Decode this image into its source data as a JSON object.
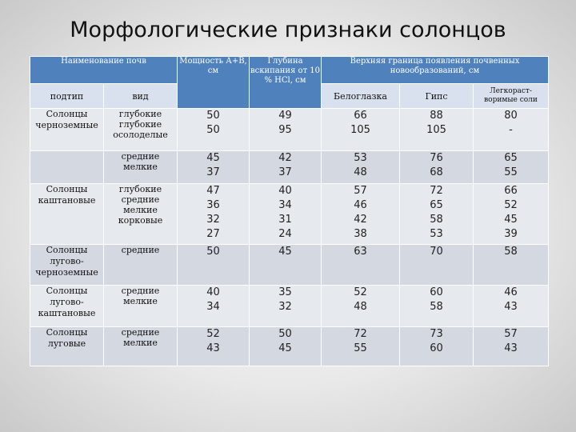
{
  "title": "Морфологические признаки солонцов",
  "header": {
    "naming": "Наименование почв",
    "subtype": "подтип",
    "kind": "вид",
    "thickness": "Мощность А+В, см",
    "boiling": "Глубина вскипания от 10 % HCl, см",
    "upper": "Верхняя граница появления почвенных новообразований, см",
    "beloglazka": "Белоглазка",
    "gips": "Гипс",
    "salts": "Легкораст-воримые соли"
  },
  "groups": [
    {
      "band": "a",
      "name": [
        "Солонцы",
        "черноземные"
      ],
      "kinds": [
        "глубокие",
        "глубокие",
        "осолоделые"
      ],
      "thickness": [
        "50",
        "50"
      ],
      "boiling": [
        "49",
        "95"
      ],
      "belo": [
        "66",
        "105"
      ],
      "gips": [
        "88",
        "105"
      ],
      "salts": [
        "80",
        "-"
      ]
    },
    {
      "band": "b",
      "name": [],
      "kinds": [
        "средние",
        "мелкие"
      ],
      "thickness": [
        "45",
        "37"
      ],
      "boiling": [
        "42",
        "37"
      ],
      "belo": [
        "53",
        "48"
      ],
      "gips": [
        "76",
        "68"
      ],
      "salts": [
        "65",
        "55"
      ]
    },
    {
      "band": "a",
      "name": [
        "Солонцы",
        "каштановые"
      ],
      "kinds": [
        "глубокие",
        "средние",
        "мелкие",
        "корковые"
      ],
      "thickness": [
        "47",
        "36",
        "32",
        "27"
      ],
      "boiling": [
        "40",
        "34",
        "31",
        "24"
      ],
      "belo": [
        "57",
        "46",
        "42",
        "38"
      ],
      "gips": [
        "72",
        "65",
        "58",
        "53"
      ],
      "salts": [
        "66",
        "52",
        "45",
        "39"
      ]
    },
    {
      "band": "b",
      "name": [
        "Солонцы",
        "лугово-",
        "черноземные"
      ],
      "kinds": [
        "средние"
      ],
      "thickness": [
        "50"
      ],
      "boiling": [
        "45"
      ],
      "belo": [
        "63"
      ],
      "gips": [
        "70"
      ],
      "salts": [
        "58"
      ]
    },
    {
      "band": "a",
      "name": [
        "Солонцы",
        "лугово-",
        "каштановые"
      ],
      "kinds": [
        "средние",
        "мелкие"
      ],
      "thickness": [
        "40",
        "34"
      ],
      "boiling": [
        "35",
        "32"
      ],
      "belo": [
        "52",
        "48"
      ],
      "gips": [
        "60",
        "58"
      ],
      "salts": [
        "46",
        "43"
      ]
    },
    {
      "band": "b",
      "name": [
        "Солонцы",
        "луговые"
      ],
      "kinds": [
        "средние",
        "мелкие"
      ],
      "thickness": [
        "52",
        "43"
      ],
      "boiling": [
        "50",
        "45"
      ],
      "belo": [
        "72",
        "55"
      ],
      "gips": [
        "73",
        "60"
      ],
      "salts": [
        "57",
        "43"
      ]
    }
  ]
}
